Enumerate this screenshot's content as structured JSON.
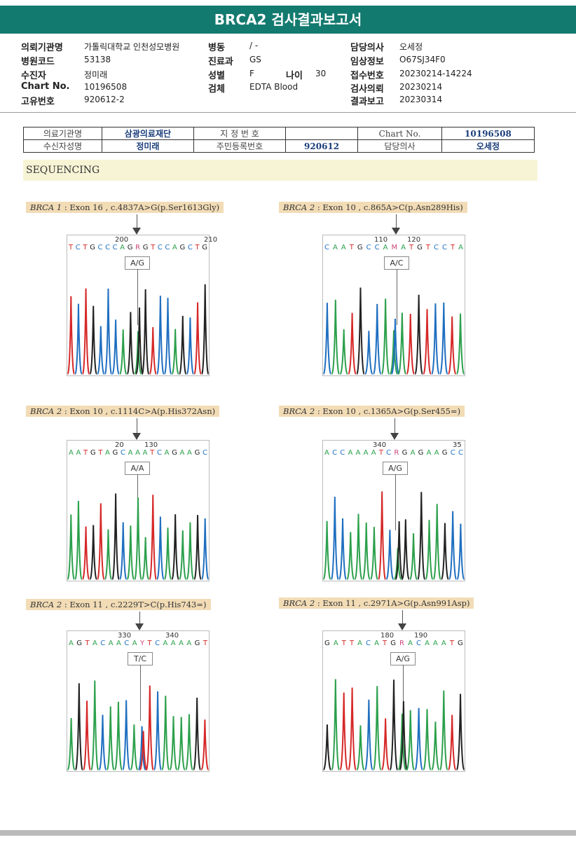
{
  "title": "BRCA2 검사결과보고서",
  "info": {
    "col1": [
      {
        "k": "의뢰기관명",
        "v": "가톨릭대학교 인천성모병원"
      },
      {
        "k": "병원코드",
        "v": "53138"
      },
      {
        "k": "수진자",
        "v": "정미래"
      },
      {
        "k": "Chart No.",
        "v": "10196508"
      },
      {
        "k": "고유번호",
        "v": "920612-2"
      }
    ],
    "col2": [
      {
        "k": "병동",
        "v": "/ -"
      },
      {
        "k": "진료과",
        "v": "GS"
      },
      {
        "k": "성별",
        "v": "F"
      },
      {
        "k": "검체",
        "v": "EDTA Blood"
      }
    ],
    "age_label": "나이",
    "age": "30",
    "col3": [
      {
        "k": "담당의사",
        "v": "오세정"
      },
      {
        "k": "임상정보",
        "v": "O67SJ34F0"
      },
      {
        "k": "접수번호",
        "v": "20230214-14224"
      },
      {
        "k": "검사의뢰",
        "v": "20230214"
      },
      {
        "k": "결과보고",
        "v": "20230314"
      }
    ]
  },
  "patient_table": {
    "r1": [
      "의료기관명",
      "삼광의료재단",
      "지 정 번 호",
      "",
      "Chart No.",
      "10196508"
    ],
    "r2": [
      "수신자성명",
      "정미래",
      "주민등록번호",
      "920612",
      "담당의사",
      "오세정"
    ]
  },
  "section": "SEQUENCING",
  "colors": {
    "A": "#2ca04c",
    "C": "#1f6fc0",
    "G": "#222222",
    "T": "#d62828",
    "R": "#d0457a",
    "M": "#d0457a",
    "Y": "#d0457a"
  },
  "panels": [
    {
      "gene": "BRCA 1",
      "rest": " : Exon 16 , c.4837A>G(p.Ser1613Gly)",
      "n1": "200",
      "n2": "210",
      "seq": "TCTGCCCAGRGTCCAGCTG",
      "gt": "A/G"
    },
    {
      "gene": "BRCA 2",
      "rest": " : Exon 10 , c.865A>C(p.Asn289His)",
      "n1": "110",
      "n2": "120",
      "seq": "CAATGCCAMATGTCCTA",
      "gt": "A/C"
    },
    {
      "gene": "BRCA 2",
      "rest": " : Exon 10 , c.1114C>A(p.His372Asn)",
      "n1": "20",
      "n2": "130",
      "seq": "AATGTAGCAAATCAGAAGC",
      "gt": "A/A"
    },
    {
      "gene": "BRCA 2",
      "rest": " : Exon 10 , c.1365A>G(p.Ser455=)",
      "n1": "340",
      "n2": "35",
      "seq": "ACCAAAATCRGAGAAGCC",
      "gt": "A/G"
    },
    {
      "gene": "BRCA 2",
      "rest": " : Exon 11 , c.2229T>C(p.His743=)",
      "n1": "330",
      "n2": "340",
      "seq": "AGTACAACAYTCAAAAGT",
      "gt": "T/C"
    },
    {
      "gene": "BRCA 2",
      "rest": " : Exon 11 , c.2971A>G(p.Asn991Asp)",
      "n1": "180",
      "n2": "190",
      "seq": "GATTACATGRACAAATG",
      "gt": "A/G"
    }
  ]
}
